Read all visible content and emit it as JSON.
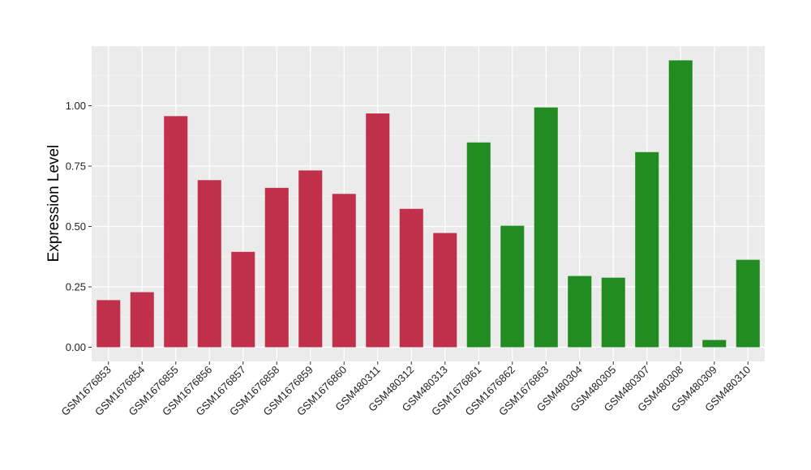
{
  "chart_data": {
    "type": "bar",
    "ylabel": "Expression Level",
    "xlabel": "",
    "ylim": [
      -0.05,
      1.25
    ],
    "yticks": [
      0.0,
      0.25,
      0.5,
      0.75,
      1.0
    ],
    "ytick_labels": [
      "0.00",
      "0.25",
      "0.50",
      "0.75",
      "1.00"
    ],
    "grid": true,
    "panel_background": "#ebebeb",
    "grid_color": "#ffffff",
    "categories": [
      "GSM1676853",
      "GSM1676854",
      "GSM1676855",
      "GSM1676856",
      "GSM1676857",
      "GSM1676858",
      "GSM1676859",
      "GSM1676860",
      "GSM480311",
      "GSM480312",
      "GSM480313",
      "GSM1676861",
      "GSM1676862",
      "GSM1676863",
      "GSM480304",
      "GSM480305",
      "GSM480307",
      "GSM480308",
      "GSM480309",
      "GSM480310"
    ],
    "values": [
      0.195,
      0.228,
      0.957,
      0.692,
      0.395,
      0.66,
      0.732,
      0.635,
      0.968,
      0.573,
      0.473,
      0.848,
      0.503,
      0.993,
      0.295,
      0.288,
      0.808,
      1.188,
      0.03,
      0.362
    ],
    "bar_colors": [
      "#c0304a",
      "#c0304a",
      "#c0304a",
      "#c0304a",
      "#c0304a",
      "#c0304a",
      "#c0304a",
      "#c0304a",
      "#c0304a",
      "#c0304a",
      "#c0304a",
      "#228b22",
      "#228b22",
      "#228b22",
      "#228b22",
      "#228b22",
      "#228b22",
      "#228b22",
      "#228b22",
      "#228b22"
    ]
  }
}
